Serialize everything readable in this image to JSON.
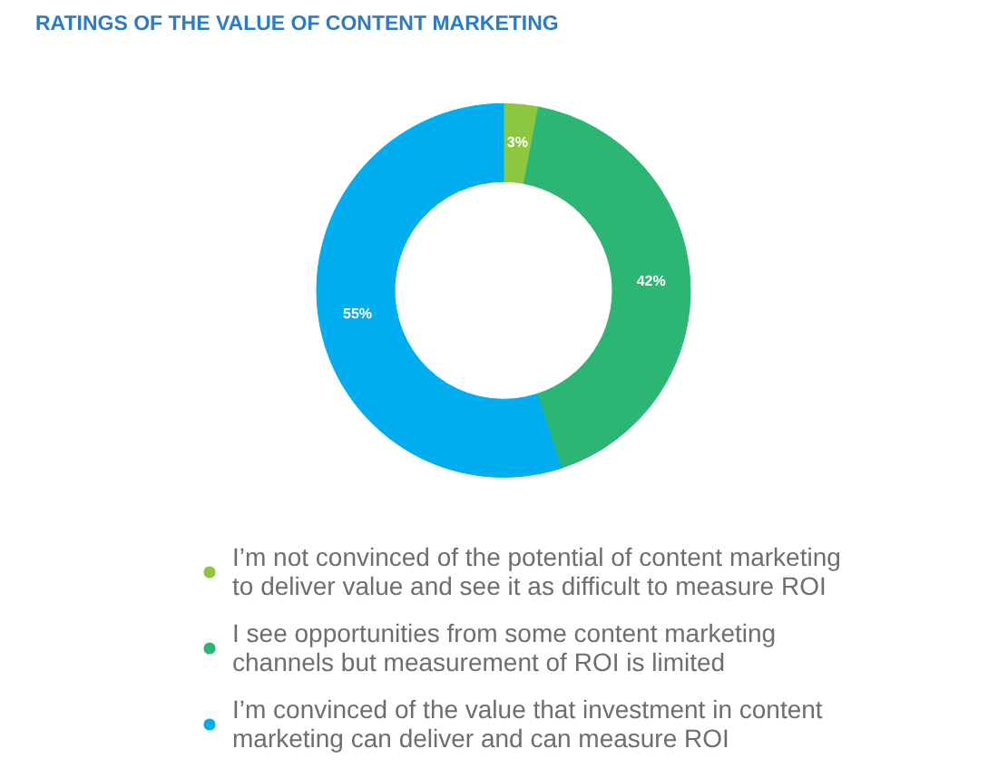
{
  "chart_data": {
    "type": "donut",
    "title": "RATINGS OF THE VALUE OF CONTENT MARKETING",
    "categories": [
      "I’m not convinced of the potential of content marketing to deliver value and see it as difficult to measure ROI",
      "I see opportunities from some content marketing channels but measurement of ROI is limited",
      "I’m convinced of the value that investment in content marketing can deliver and can measure ROI"
    ],
    "values": [
      3,
      42,
      55
    ],
    "colors": [
      "#8dc63f",
      "#2db573",
      "#00aeef"
    ],
    "value_labels": [
      "3%",
      "42%",
      "55%"
    ],
    "legend": "bottom"
  }
}
